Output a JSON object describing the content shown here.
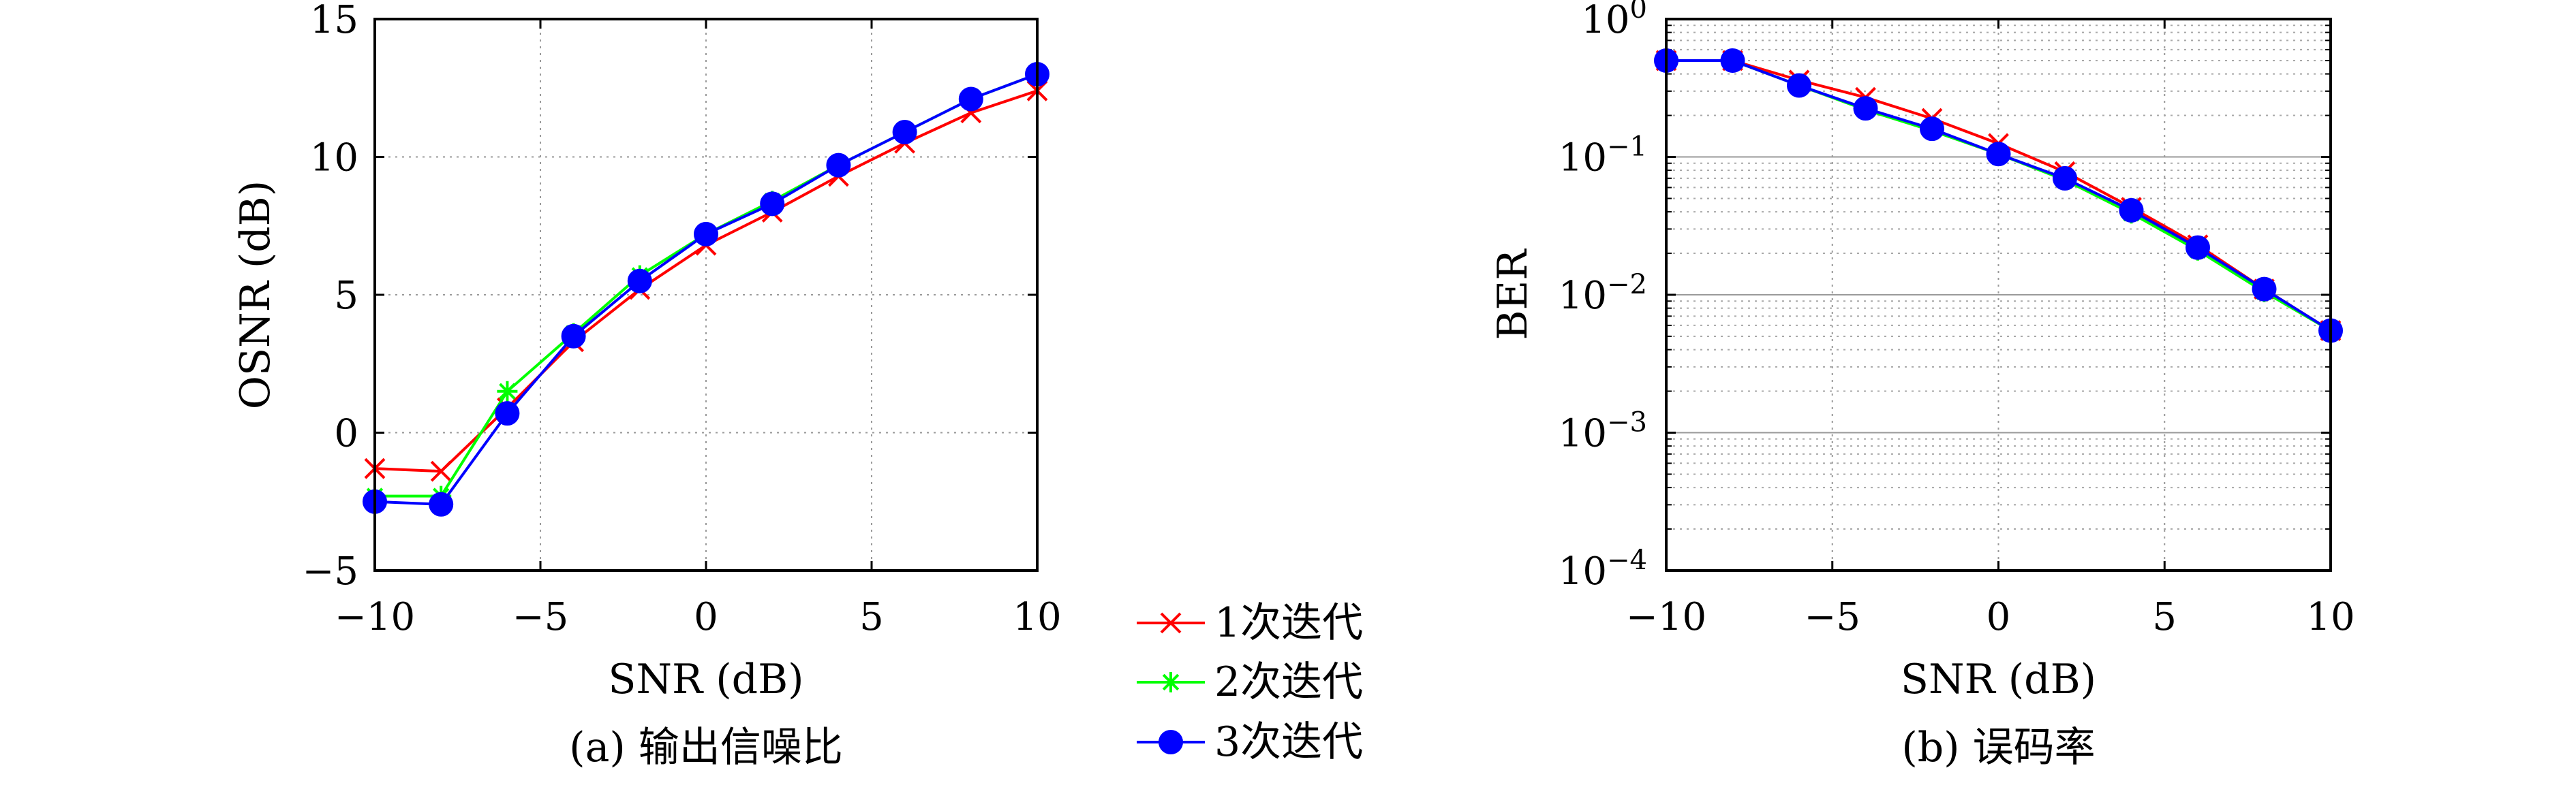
{
  "chart_data": [
    {
      "type": "line",
      "caption": "(a) 输出信噪比",
      "xlabel": "SNR (dB)",
      "ylabel": "OSNR (dB)",
      "xlim": [
        -10,
        10
      ],
      "ylim": [
        -5,
        15
      ],
      "xticks": [
        -10,
        -5,
        0,
        5,
        10
      ],
      "xtick_labels": [
        "−10",
        "−5",
        "0",
        "5",
        "10"
      ],
      "yticks": [
        -5,
        0,
        5,
        10,
        15
      ],
      "ytick_labels": [
        "−5",
        "0",
        "5",
        "10",
        "15"
      ],
      "yscale": "linear",
      "grid": true,
      "x": [
        -10,
        -8,
        -6,
        -4,
        -2,
        0,
        2,
        4,
        6,
        8,
        10
      ],
      "series": [
        {
          "name": "1次迭代",
          "color": "#ff0000",
          "marker": "x",
          "values": [
            -1.3,
            -1.4,
            0.9,
            3.3,
            5.2,
            6.8,
            8.0,
            9.3,
            10.5,
            11.6,
            12.4
          ]
        },
        {
          "name": "2次迭代",
          "color": "#00ff00",
          "marker": "star",
          "values": [
            -2.3,
            -2.3,
            1.5,
            3.6,
            5.7,
            7.2,
            8.4,
            9.7,
            10.9,
            12.1,
            13.0
          ]
        },
        {
          "name": "3次迭代",
          "color": "#0000ff",
          "marker": "circle",
          "values": [
            -2.5,
            -2.6,
            0.7,
            3.5,
            5.5,
            7.2,
            8.3,
            9.7,
            10.9,
            12.1,
            13.0
          ]
        }
      ]
    },
    {
      "type": "line",
      "caption": "(b) 误码率",
      "xlabel": "SNR (dB)",
      "ylabel": "BER",
      "xlim": [
        -10,
        10
      ],
      "ylim": [
        0.0001,
        1
      ],
      "xticks": [
        -10,
        -5,
        0,
        5,
        10
      ],
      "xtick_labels": [
        "−10",
        "−5",
        "0",
        "5",
        "10"
      ],
      "yticks": [
        0.0001,
        0.001,
        0.01,
        0.1,
        1
      ],
      "ytick_labels": [
        {
          "base": "10",
          "exp": "−4"
        },
        {
          "base": "10",
          "exp": "−3"
        },
        {
          "base": "10",
          "exp": "−2"
        },
        {
          "base": "10",
          "exp": "−1"
        },
        {
          "base": "10",
          "exp": "0"
        }
      ],
      "yscale": "log",
      "grid": true,
      "x": [
        -10,
        -8,
        -6,
        -4,
        -2,
        0,
        2,
        4,
        6,
        8,
        10
      ],
      "series": [
        {
          "name": "1次迭代",
          "color": "#ff0000",
          "marker": "x",
          "values": [
            0.5,
            0.5,
            0.36,
            0.27,
            0.19,
            0.125,
            0.078,
            0.043,
            0.023,
            0.011,
            0.0055
          ]
        },
        {
          "name": "2次迭代",
          "color": "#00ff00",
          "marker": "star",
          "values": [
            0.5,
            0.5,
            0.33,
            0.22,
            0.155,
            0.105,
            0.068,
            0.039,
            0.021,
            0.0105,
            0.0055
          ]
        },
        {
          "name": "3次迭代",
          "color": "#0000ff",
          "marker": "circle",
          "values": [
            0.5,
            0.5,
            0.33,
            0.225,
            0.16,
            0.105,
            0.07,
            0.041,
            0.022,
            0.011,
            0.0055
          ]
        }
      ]
    }
  ],
  "legend": {
    "placement": "bottom-center, between panels",
    "items": [
      {
        "label": "1次迭代",
        "color": "#ff0000",
        "marker": "x"
      },
      {
        "label": "2次迭代",
        "color": "#00ff00",
        "marker": "star"
      },
      {
        "label": "3次迭代",
        "color": "#0000ff",
        "marker": "circle"
      }
    ]
  }
}
